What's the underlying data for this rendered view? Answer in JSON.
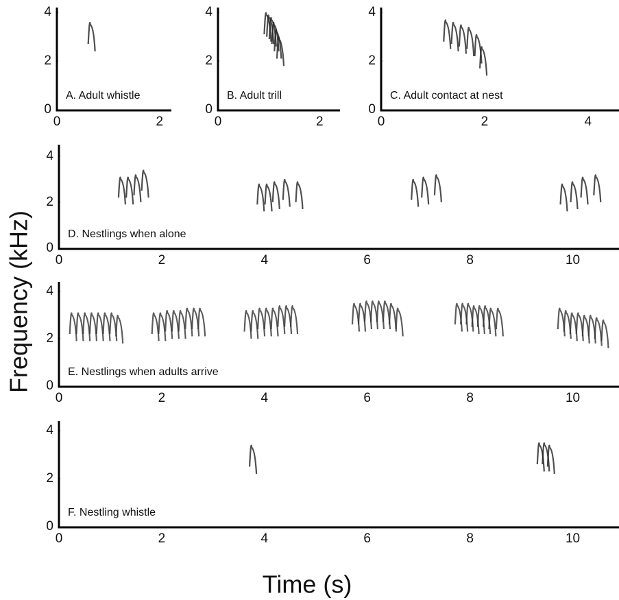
{
  "xlabel": "Time (s)",
  "ylabel": "Frequency (kHz)",
  "chart_data": [
    {
      "type": "spectrogram",
      "label": "A. Adult whistle",
      "xlim": [
        0,
        2.23
      ],
      "ylim": [
        0,
        4.2
      ],
      "xticks": [
        0,
        2
      ],
      "yticks": [
        0,
        2,
        4
      ],
      "series": [
        {
          "color": "#222222",
          "x": [
            0.65
          ],
          "values": [
            3.5
          ]
        }
      ]
    },
    {
      "type": "spectrogram",
      "label": "B. Adult trill",
      "xlim": [
        0,
        2.4
      ],
      "ylim": [
        0,
        4.2
      ],
      "xticks": [
        0,
        2
      ],
      "yticks": [
        0,
        2,
        4
      ],
      "series": [
        {
          "color": "#222222",
          "x": [
            0.95,
            1.0,
            1.05,
            1.1,
            1.15,
            1.2
          ],
          "values": [
            3.9,
            3.8,
            3.7,
            3.5,
            3.2,
            2.9
          ]
        }
      ]
    },
    {
      "type": "spectrogram",
      "label": "C. Adult contact at nest",
      "xlim": [
        0,
        4.6
      ],
      "ylim": [
        0,
        4.2
      ],
      "xticks": [
        0,
        2,
        4
      ],
      "yticks": [
        0,
        2,
        4
      ],
      "series": [
        {
          "color": "#222222",
          "x": [
            1.25,
            1.4,
            1.55,
            1.7,
            1.85,
            1.95
          ],
          "values": [
            3.6,
            3.5,
            3.4,
            3.3,
            3.0,
            2.5
          ]
        }
      ]
    },
    {
      "type": "spectrogram",
      "label": "D. Nestlings when alone",
      "xlim": [
        0,
        10.9
      ],
      "ylim": [
        0,
        4.5
      ],
      "xticks": [
        0,
        2,
        4,
        6,
        8,
        10
      ],
      "yticks": [
        0,
        2,
        4
      ],
      "series": [
        {
          "color": "#222222",
          "x": [
            1.2,
            1.35,
            1.5,
            1.65,
            3.9,
            4.05,
            4.2,
            4.4,
            4.65,
            6.9,
            7.1,
            7.35,
            9.8,
            10.0,
            10.2,
            10.45
          ],
          "values": [
            3.0,
            3.0,
            3.1,
            3.3,
            2.7,
            2.7,
            2.8,
            2.9,
            2.8,
            2.9,
            3.0,
            3.1,
            2.7,
            2.8,
            3.0,
            3.1
          ]
        }
      ]
    },
    {
      "type": "spectrogram",
      "label": "E. Nestlings when adults arrive",
      "xlim": [
        0,
        10.9
      ],
      "ylim": [
        0,
        4.4
      ],
      "xticks": [
        0,
        2,
        4,
        6,
        8,
        10
      ],
      "yticks": [
        0,
        2,
        4
      ],
      "series": [
        {
          "color": "#333333",
          "x": [
            0.25,
            0.38,
            0.51,
            0.64,
            0.77,
            0.9,
            1.03,
            1.15,
            1.85,
            1.98,
            2.11,
            2.24,
            2.37,
            2.5,
            2.63,
            2.75,
            3.65,
            3.78,
            3.91,
            4.04,
            4.17,
            4.3,
            4.43,
            4.55,
            5.75,
            5.87,
            5.99,
            6.11,
            6.23,
            6.35,
            6.47,
            6.6,
            7.75,
            7.86,
            7.97,
            8.08,
            8.19,
            8.3,
            8.41,
            8.55,
            9.75,
            9.87,
            9.99,
            10.11,
            10.23,
            10.35,
            10.47,
            10.6
          ],
          "values": [
            3.0,
            3.0,
            3.0,
            3.0,
            3.0,
            3.0,
            3.0,
            2.9,
            3.0,
            3.0,
            3.1,
            3.1,
            3.1,
            3.2,
            3.2,
            3.2,
            3.1,
            3.1,
            3.2,
            3.2,
            3.2,
            3.3,
            3.3,
            3.3,
            3.4,
            3.4,
            3.5,
            3.5,
            3.5,
            3.5,
            3.4,
            3.2,
            3.4,
            3.4,
            3.4,
            3.3,
            3.3,
            3.3,
            3.2,
            3.2,
            3.2,
            3.1,
            3.0,
            3.0,
            2.9,
            2.9,
            2.8,
            2.7
          ]
        }
      ]
    },
    {
      "type": "spectrogram",
      "label": "F. Nestling whistle",
      "xlim": [
        0,
        10.9
      ],
      "ylim": [
        0,
        4.4
      ],
      "xticks": [
        0,
        2,
        4,
        6,
        8,
        10
      ],
      "yticks": [
        0,
        2,
        4
      ],
      "series": [
        {
          "color": "#222222",
          "x": [
            3.75,
            9.35,
            9.45,
            9.55
          ],
          "values": [
            3.3,
            3.4,
            3.4,
            3.3
          ]
        }
      ]
    }
  ]
}
